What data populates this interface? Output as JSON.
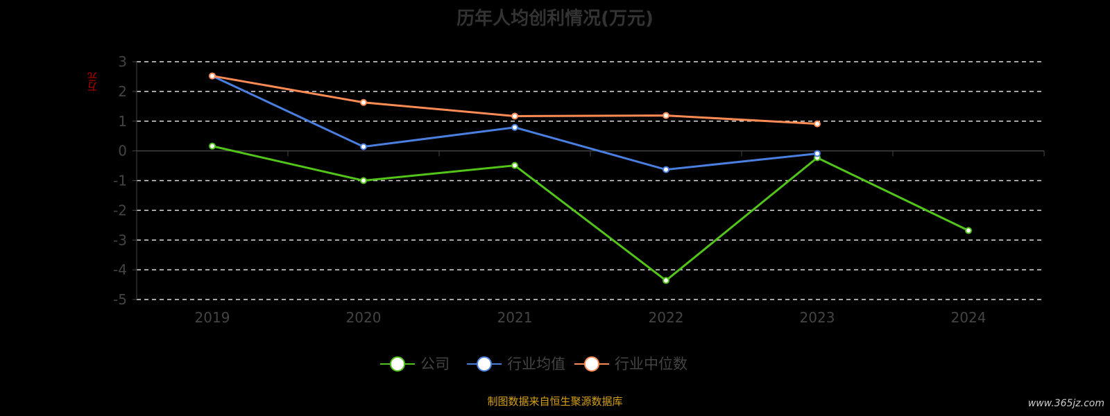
{
  "chart_data": {
    "type": "line",
    "title": "历年人均创利情况(万元)",
    "ylabel": "万元",
    "xlabel": "",
    "categories": [
      "2019",
      "2020",
      "2021",
      "2022",
      "2023",
      "2024"
    ],
    "ylim": [
      -5,
      3
    ],
    "yticks": [
      3,
      2,
      1,
      0,
      -1,
      -2,
      -3,
      -4,
      -5
    ],
    "grid": true,
    "legend_position": "bottom",
    "series": [
      {
        "name": "公司",
        "color": "#52c41a",
        "values": [
          0.16,
          -1.0,
          -0.49,
          -4.36,
          -0.23,
          -2.68
        ]
      },
      {
        "name": "行业均值",
        "color": "#4a7fe0",
        "values": [
          2.52,
          0.14,
          0.79,
          -0.63,
          -0.09,
          null
        ]
      },
      {
        "name": "行业中位数",
        "color": "#ff8c55",
        "values": [
          2.52,
          1.63,
          1.17,
          1.19,
          0.91,
          null
        ]
      }
    ]
  },
  "footer": {
    "source": "制图数据来自恒生聚源数据库",
    "watermark": "www.365jz.com"
  }
}
